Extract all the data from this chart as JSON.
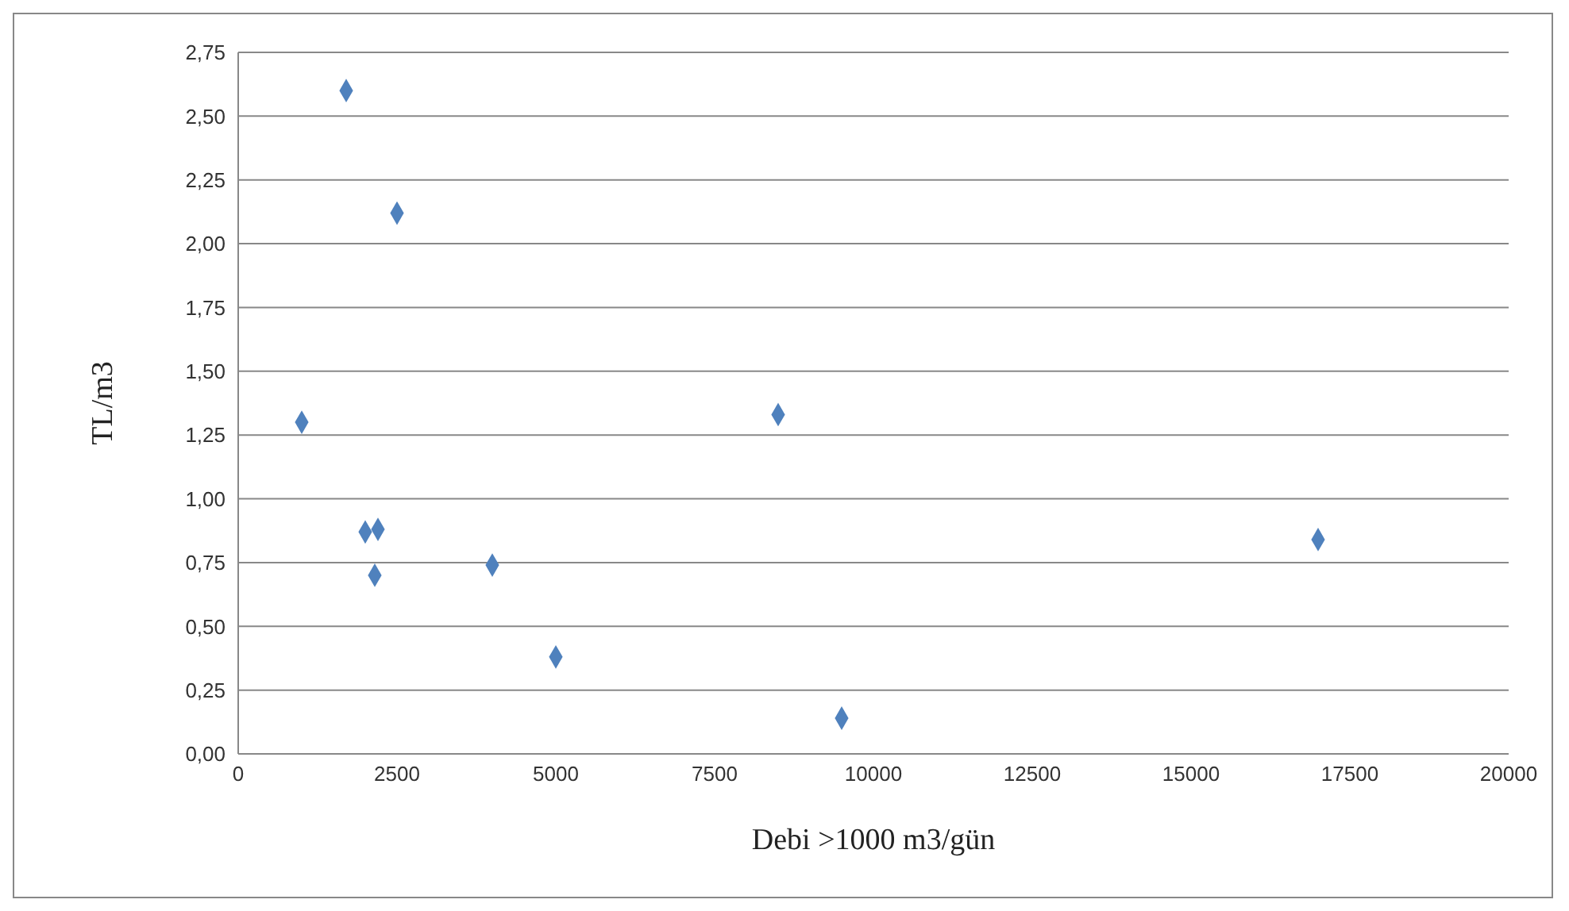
{
  "chart_data": {
    "type": "scatter",
    "xlabel": "Debi >1000 m3/gün",
    "ylabel": "TL/m3",
    "x": [
      1700,
      2500,
      1000,
      8500,
      2000,
      2200,
      2150,
      4000,
      5000,
      9500,
      17000
    ],
    "series": [
      {
        "color": "#4f81bd",
        "values": [
          2.6,
          2.12,
          1.3,
          1.33,
          0.87,
          0.88,
          0.7,
          0.74,
          0.38,
          0.14,
          0.84
        ]
      }
    ],
    "xlim": [
      0,
      20000
    ],
    "xticks": [
      0,
      2500,
      5000,
      7500,
      10000,
      12500,
      15000,
      17500,
      20000
    ],
    "ylim": [
      0,
      2.75
    ],
    "yticks": [
      {
        "value": 0,
        "label": "0,00"
      },
      {
        "value": 0.25,
        "label": "0,25"
      },
      {
        "value": 0.5,
        "label": "0,50"
      },
      {
        "value": 0.75,
        "label": "0,75"
      },
      {
        "value": 1,
        "label": "1,00"
      },
      {
        "value": 1.25,
        "label": "1,25"
      },
      {
        "value": 1.5,
        "label": "1,50"
      },
      {
        "value": 1.75,
        "label": "1,75"
      },
      {
        "value": 2,
        "label": "2,00"
      },
      {
        "value": 2.25,
        "label": "2,25"
      },
      {
        "value": 2.5,
        "label": "2,50"
      },
      {
        "value": 2.75,
        "label": "2,75"
      }
    ],
    "grid": "y",
    "marker": "diamond"
  }
}
